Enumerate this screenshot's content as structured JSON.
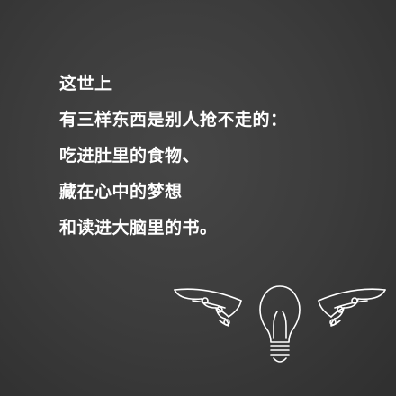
{
  "quote": {
    "lines": [
      "这世上",
      "有三样东西是别人抢不走的：",
      "吃进肚里的食物、",
      "藏在心中的梦想",
      "和读进大脑里的书。"
    ]
  },
  "emblem": {
    "icons": [
      "left-wing-icon",
      "lightbulb-icon",
      "right-wing-icon"
    ],
    "color": "#ffffff"
  },
  "background_color": "#3c3c3c"
}
